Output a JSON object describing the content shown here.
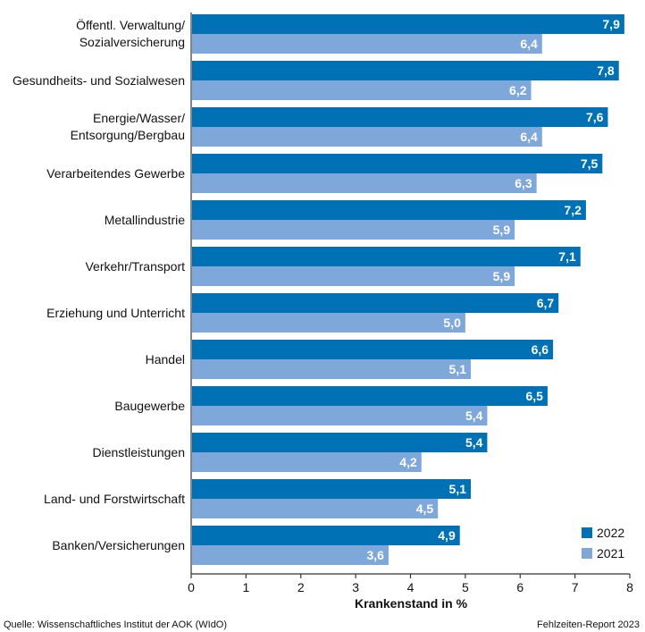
{
  "chart_data": {
    "type": "bar",
    "orientation": "horizontal",
    "categories": [
      [
        "Öffentl. Verwaltung/",
        "Sozialversicherung"
      ],
      [
        "Gesundheits- und Sozialwesen"
      ],
      [
        "Energie/Wasser/",
        "Entsorgung/Bergbau"
      ],
      [
        "Verarbeitendes Gewerbe"
      ],
      [
        "Metallindustrie"
      ],
      [
        "Verkehr/Transport"
      ],
      [
        "Erziehung und Unterricht"
      ],
      [
        "Handel"
      ],
      [
        "Baugewerbe"
      ],
      [
        "Dienstleistungen"
      ],
      [
        "Land- und Forstwirtschaft"
      ],
      [
        "Banken/Versicherungen"
      ]
    ],
    "series": [
      {
        "name": "2022",
        "color": "#0071b4",
        "values": [
          7.9,
          7.8,
          7.6,
          7.5,
          7.2,
          7.1,
          6.7,
          6.6,
          6.5,
          5.4,
          5.1,
          4.9
        ]
      },
      {
        "name": "2021",
        "color": "#7ea8da",
        "values": [
          6.4,
          6.2,
          6.4,
          6.3,
          5.9,
          5.9,
          5.0,
          5.1,
          5.4,
          4.2,
          4.5,
          3.6
        ]
      }
    ],
    "xlabel": "Krankenstand in %",
    "xlim": [
      0,
      8
    ],
    "xticks": [
      "0",
      "1",
      "2",
      "3",
      "4",
      "5",
      "6",
      "7",
      "8"
    ],
    "grid": false,
    "legend_position": "bottom-right",
    "decimal_separator": ","
  },
  "footer": {
    "source": "Quelle: Wissenschaftliches Institut der AOK (WIdO)",
    "report": "Fehlzeiten-Report 2023"
  }
}
